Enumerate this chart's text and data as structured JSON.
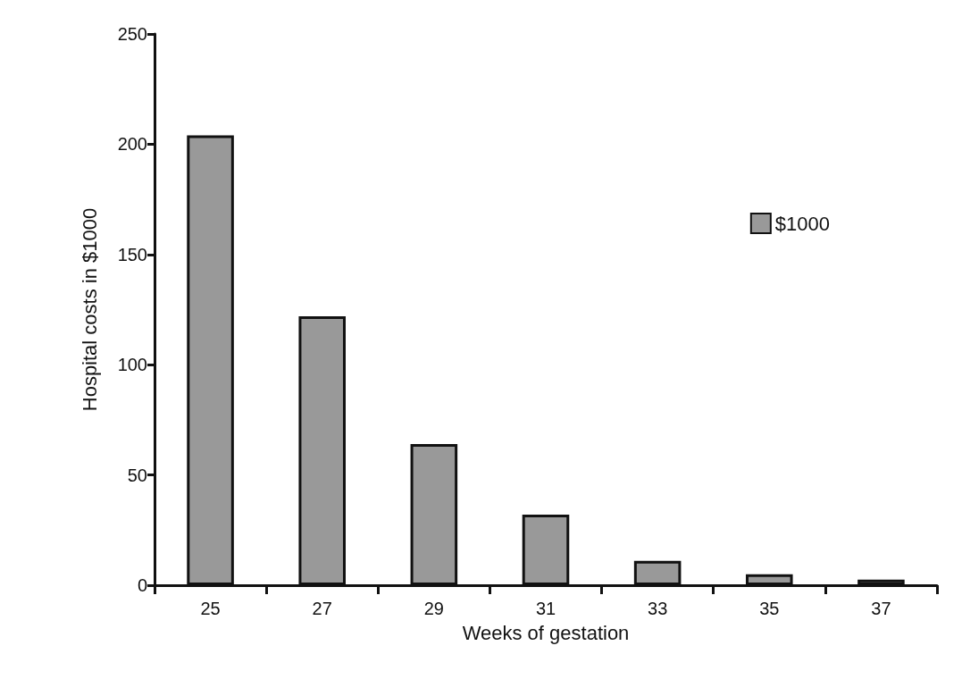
{
  "chart_data": {
    "type": "bar",
    "xlabel": "Weeks of gestation",
    "ylabel": "Hospital costs in $1000",
    "categories": [
      "25",
      "27",
      "29",
      "31",
      "33",
      "35",
      "37"
    ],
    "series": [
      {
        "name": "$1000",
        "color": "#999999",
        "values": [
          204,
          122,
          64,
          32,
          11,
          5,
          2.5
        ]
      }
    ],
    "ylim": [
      0,
      250
    ],
    "yticks": [
      0,
      50,
      100,
      150,
      200,
      250
    ],
    "grid": false,
    "legend": "top right"
  }
}
